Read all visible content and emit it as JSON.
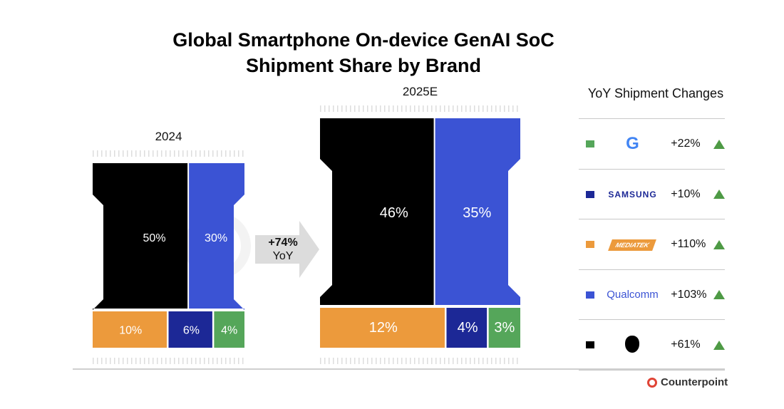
{
  "title_line1": "Global Smartphone On-device GenAI SoC",
  "title_line2": "Shipment Share by Brand",
  "watermark": "Counterpoint",
  "footer_brand": "Counterpoint",
  "arrow": {
    "value": "+74%",
    "label": "YoY"
  },
  "colors": {
    "Apple": "#000000",
    "Qualcomm": "#3b53d4",
    "MediaTek": "#ec9a3c",
    "Samsung": "#1c2896",
    "Google": "#55a65a",
    "up": "#4e9a45"
  },
  "chart_data": {
    "type": "bar",
    "title": "Global Smartphone On-device GenAI SoC Shipment Share by Brand",
    "categories": [
      "2024",
      "2025E"
    ],
    "series": [
      {
        "name": "Apple",
        "values": [
          50,
          46
        ],
        "labels": [
          "50%",
          "46%"
        ]
      },
      {
        "name": "Qualcomm",
        "values": [
          30,
          35
        ],
        "labels": [
          "30%",
          "35%"
        ]
      },
      {
        "name": "MediaTek",
        "values": [
          10,
          12
        ],
        "labels": [
          "10%",
          "12%"
        ]
      },
      {
        "name": "Samsung",
        "values": [
          6,
          4
        ],
        "labels": [
          "6%",
          "4%"
        ]
      },
      {
        "name": "Google",
        "values": [
          4,
          3
        ],
        "labels": [
          "4%",
          "3%"
        ]
      }
    ],
    "unit": "%"
  },
  "legend": {
    "title": "YoY Shipment Changes",
    "items": [
      {
        "brand": "Google",
        "logo_text": "G",
        "change": "+22%"
      },
      {
        "brand": "Samsung",
        "logo_text": "SAMSUNG",
        "change": "+10%"
      },
      {
        "brand": "MediaTek",
        "logo_text": "MEDIATEK",
        "change": "+110%"
      },
      {
        "brand": "Qualcomm",
        "logo_text": "Qualcomm",
        "change": "+103%"
      },
      {
        "brand": "Apple",
        "logo_text": "",
        "change": "+61%"
      }
    ]
  }
}
